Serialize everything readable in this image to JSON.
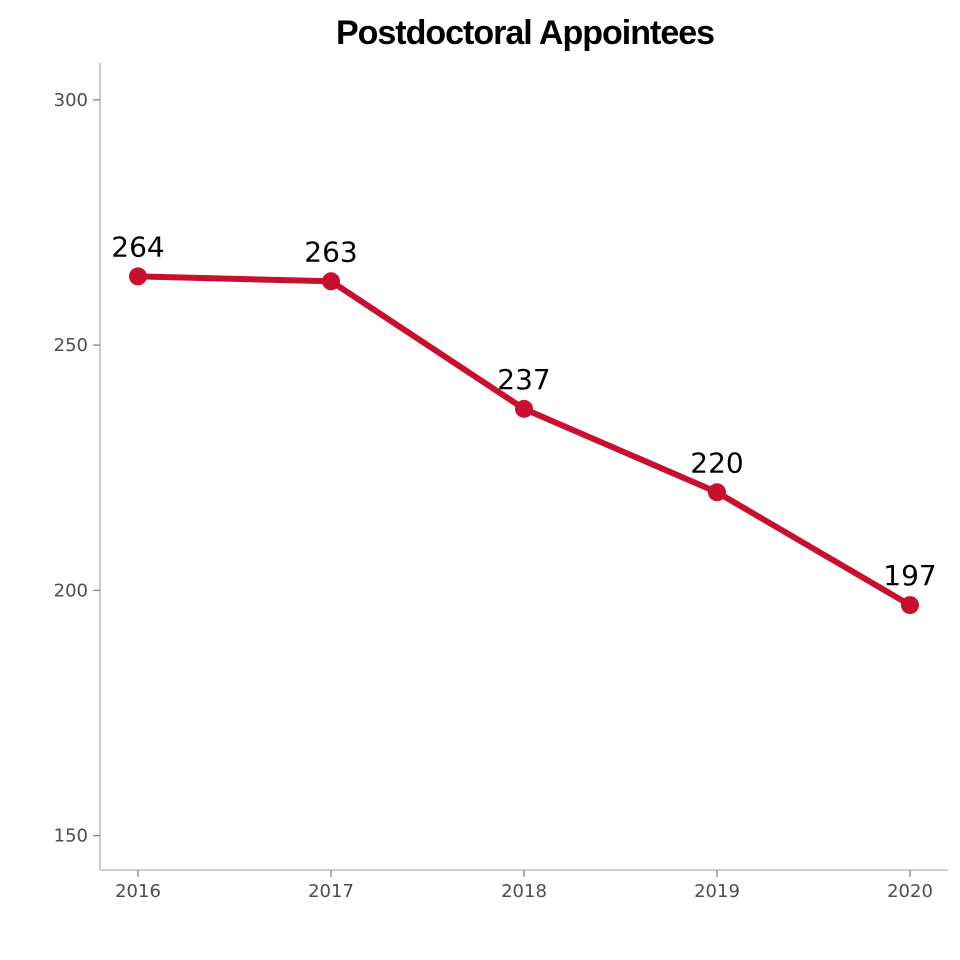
{
  "chart_data": {
    "type": "line",
    "title": "Postdoctoral Appointees",
    "xlabel": "",
    "ylabel": "",
    "categories": [
      "2016",
      "2017",
      "2018",
      "2019",
      "2020"
    ],
    "series": [
      {
        "name": "Postdoctoral Appointees",
        "values": [
          264,
          263,
          237,
          220,
          197
        ]
      }
    ],
    "data_labels": [
      "264",
      "263",
      "237",
      "220",
      "197"
    ],
    "y_ticks": [
      150,
      200,
      250,
      300
    ],
    "y_tick_labels": [
      "150",
      "200",
      "250",
      "300"
    ],
    "ylim": [
      143,
      307.5
    ],
    "grid": false,
    "legend": "none",
    "line_color": "#c8102e"
  }
}
